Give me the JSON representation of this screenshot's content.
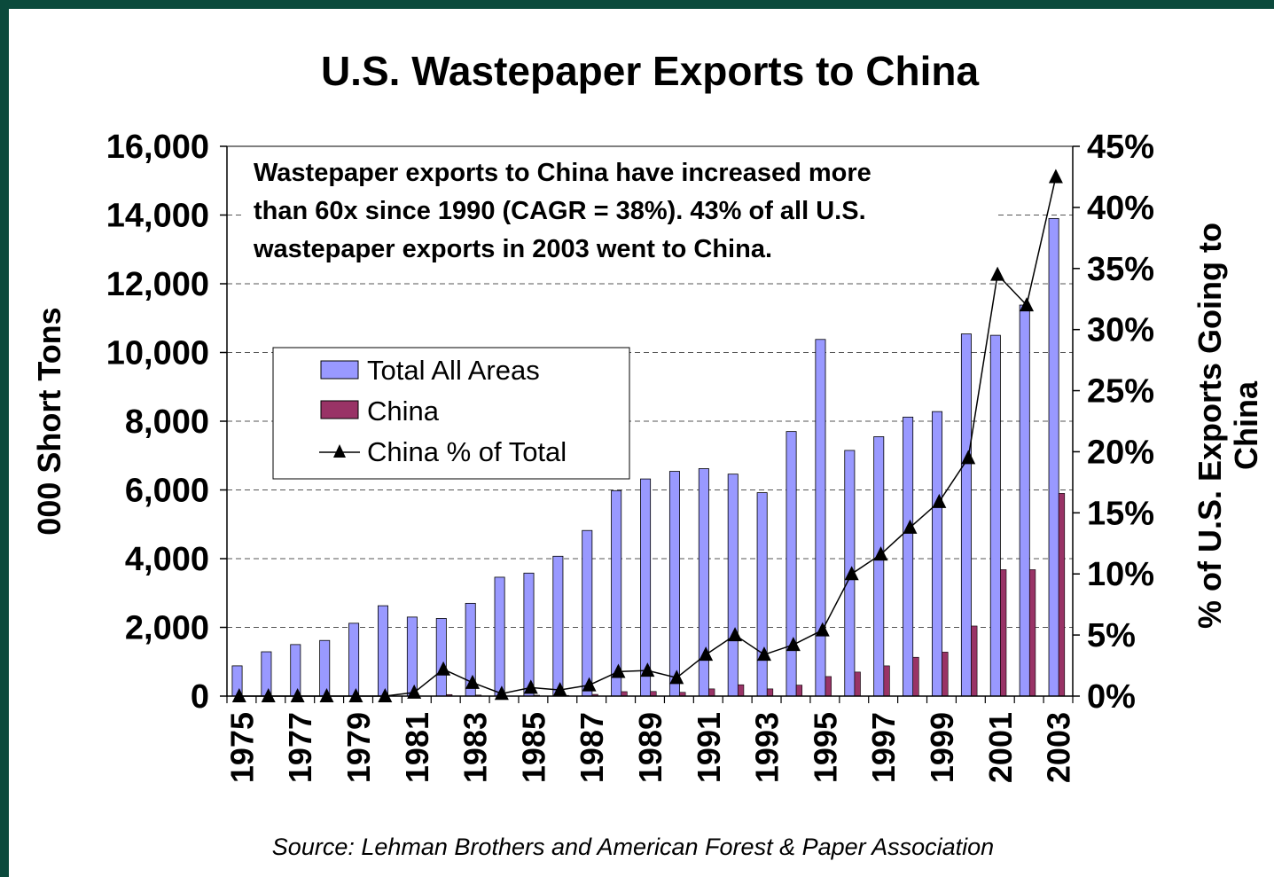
{
  "chart_data": {
    "type": "bar",
    "title": "U.S. Wastepaper Exports to China",
    "ylabel": "000 Short Tons",
    "y2label_lines": [
      "% of U.S. Exports Going to",
      "China"
    ],
    "ylim": [
      0,
      16000
    ],
    "y2lim": [
      0,
      45
    ],
    "y_ticks": [
      "0",
      "2,000",
      "4,000",
      "6,000",
      "8,000",
      "10,000",
      "12,000",
      "14,000",
      "16,000"
    ],
    "y2_ticks": [
      "0%",
      "5%",
      "10%",
      "15%",
      "20%",
      "25%",
      "30%",
      "35%",
      "40%",
      "45%"
    ],
    "grid": true,
    "categories": [
      1975,
      1976,
      1977,
      1978,
      1979,
      1980,
      1981,
      1982,
      1983,
      1984,
      1985,
      1986,
      1987,
      1988,
      1989,
      1990,
      1991,
      1992,
      1993,
      1994,
      1995,
      1996,
      1997,
      1998,
      1999,
      2000,
      2001,
      2002,
      2003
    ],
    "x_tick_labels": [
      "1975",
      "1977",
      "1979",
      "1981",
      "1983",
      "1985",
      "1987",
      "1989",
      "1991",
      "1993",
      "1995",
      "1997",
      "1999",
      "2001",
      "2003"
    ],
    "series": [
      {
        "name": "Total All Areas",
        "kind": "bar",
        "color": "#9999ff",
        "values": [
          880,
          1290,
          1500,
          1620,
          2120,
          2630,
          2300,
          2260,
          2700,
          3460,
          3580,
          4070,
          4820,
          5980,
          6320,
          6540,
          6620,
          6460,
          5920,
          7700,
          10380,
          7150,
          7550,
          8120,
          8280,
          10540,
          10500,
          11380,
          13900
        ]
      },
      {
        "name": "China",
        "kind": "bar",
        "color": "#993366",
        "values": [
          0,
          0,
          0,
          0,
          0,
          0,
          5,
          45,
          30,
          5,
          25,
          20,
          50,
          130,
          135,
          110,
          210,
          330,
          210,
          320,
          570,
          700,
          880,
          1130,
          1280,
          2040,
          3680,
          3680,
          5900
        ]
      },
      {
        "name": "China % of Total",
        "kind": "line",
        "axis": "right",
        "color": "#000000",
        "values": [
          0,
          0,
          0,
          0,
          0,
          0,
          0.3,
          2.2,
          1.1,
          0.2,
          0.7,
          0.5,
          0.9,
          2.0,
          2.1,
          1.5,
          3.4,
          5.0,
          3.4,
          4.2,
          5.4,
          10.0,
          11.6,
          13.8,
          15.9,
          19.5,
          34.5,
          32.0,
          42.5
        ]
      }
    ],
    "annotation_lines": [
      "Wastepaper exports to China have increased more",
      "than 60x since 1990 (CAGR = 38%).  43% of all U.S.",
      "wastepaper exports in 2003 went to China."
    ],
    "legend_position": "left-center",
    "source": "Source: Lehman Brothers and American Forest & Paper Association"
  }
}
